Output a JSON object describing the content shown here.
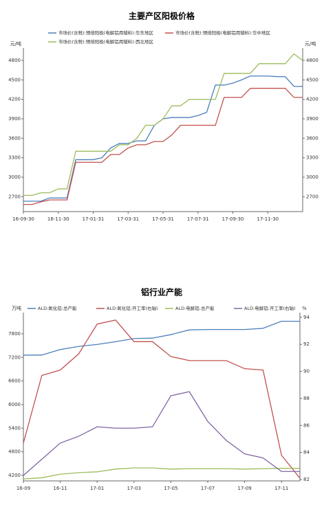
{
  "chart_data": [
    {
      "type": "line",
      "title": "主要产区阳极价格",
      "y_label": "元/吨",
      "y2_label": "元/吨",
      "grid": false,
      "categories": [
        "16-09-30",
        null,
        null,
        null,
        "16-11-30",
        null,
        null,
        null,
        "17-01-31",
        null,
        null,
        null,
        "17-03-31",
        null,
        null,
        null,
        "17-05-31",
        null,
        null,
        null,
        "17-07-31",
        null,
        null,
        null,
        "17-09-30",
        null,
        null,
        null,
        "17-11-30",
        null,
        null,
        null,
        null
      ],
      "ylim": [
        2470,
        4990
      ],
      "yticks": [
        2700,
        3000,
        3300,
        3600,
        3900,
        4200,
        4500,
        4800
      ],
      "y2lim": [
        2470,
        4990
      ],
      "y2ticks": [
        2700,
        3000,
        3300,
        3600,
        3900,
        4200,
        4500,
        4800
      ],
      "series": [
        {
          "name": "市场价(含税):预焙阳极(电解铝用辅料):华东地区",
          "color": "#4a7ebb",
          "values": [
            2630,
            2630,
            2630,
            2680,
            2680,
            2680,
            3270,
            3270,
            3270,
            3300,
            3450,
            3520,
            3520,
            3560,
            3560,
            3800,
            3900,
            3920,
            3920,
            3920,
            3950,
            4000,
            4420,
            4420,
            4450,
            4500,
            4560,
            4560,
            4560,
            4550,
            4550,
            4400,
            4400
          ]
        },
        {
          "name": "市场价(含税):预焙阳极(电解铝用辅料):华中地区",
          "color": "#c0504d",
          "values": [
            2580,
            2580,
            2620,
            2650,
            2650,
            2650,
            3230,
            3230,
            3230,
            3230,
            3350,
            3350,
            3450,
            3500,
            3500,
            3550,
            3550,
            3650,
            3800,
            3800,
            3800,
            3800,
            3800,
            4230,
            4230,
            4230,
            4370,
            4370,
            4370,
            4370,
            4370,
            4230,
            4230
          ]
        },
        {
          "name": "市场价(含税):预焙阳极(电解铝用辅料):西北地区",
          "color": "#9bbb59",
          "values": [
            2720,
            2720,
            2760,
            2760,
            2820,
            2820,
            3400,
            3400,
            3400,
            3400,
            3400,
            3500,
            3500,
            3600,
            3800,
            3800,
            3900,
            4100,
            4100,
            4200,
            4200,
            4200,
            4200,
            4600,
            4600,
            4600,
            4600,
            4750,
            4750,
            4750,
            4750,
            4900,
            4800
          ]
        }
      ]
    },
    {
      "type": "line",
      "title": "铝行业产能",
      "y_label": "万吨",
      "y2_label": "%",
      "grid": false,
      "categories": [
        "16-09",
        null,
        "16-11",
        null,
        "17-01",
        null,
        "17-03",
        null,
        "17-05",
        null,
        "17-07",
        null,
        "17-09",
        null,
        "17-11",
        null
      ],
      "ylim": [
        4060,
        8340
      ],
      "yticks": [
        4200,
        4800,
        5400,
        6000,
        6600,
        7200,
        7800
      ],
      "y2lim": [
        81.9,
        94.35
      ],
      "y2ticks": [
        82,
        84,
        86,
        88,
        90,
        92,
        94
      ],
      "series": [
        {
          "name": "ALD:氧化铝:总产能",
          "color": "#4a7ebb",
          "values": [
            7258,
            7260,
            7400,
            7480,
            7530,
            7600,
            7680,
            7690,
            7780,
            7900,
            7910,
            7910,
            7910,
            7940,
            8120,
            8120
          ]
        },
        {
          "name": "ALD:氧化铝:开工率(右轴)",
          "color": "#c0504d",
          "axis": "y2",
          "values": [
            84.7,
            89.7,
            90.1,
            91.3,
            93.5,
            93.8,
            92.2,
            92.2,
            91.1,
            90.8,
            90.8,
            90.8,
            90.2,
            90.1,
            83.8,
            82.1
          ]
        },
        {
          "name": "ALD:电解铝:总产能",
          "color": "#9bbb59",
          "values": [
            4110,
            4140,
            4230,
            4270,
            4290,
            4360,
            4390,
            4390,
            4360,
            4370,
            4370,
            4370,
            4360,
            4370,
            4380,
            4380
          ]
        },
        {
          "name": "ALD:电解铝:开工率(右轴)",
          "color": "#8064a2",
          "axis": "y2",
          "values": [
            82.3,
            83.5,
            84.7,
            85.2,
            85.9,
            85.8,
            85.8,
            85.9,
            88.2,
            88.5,
            86.3,
            84.9,
            83.9,
            83.6,
            82.6,
            82.6
          ]
        }
      ]
    }
  ]
}
